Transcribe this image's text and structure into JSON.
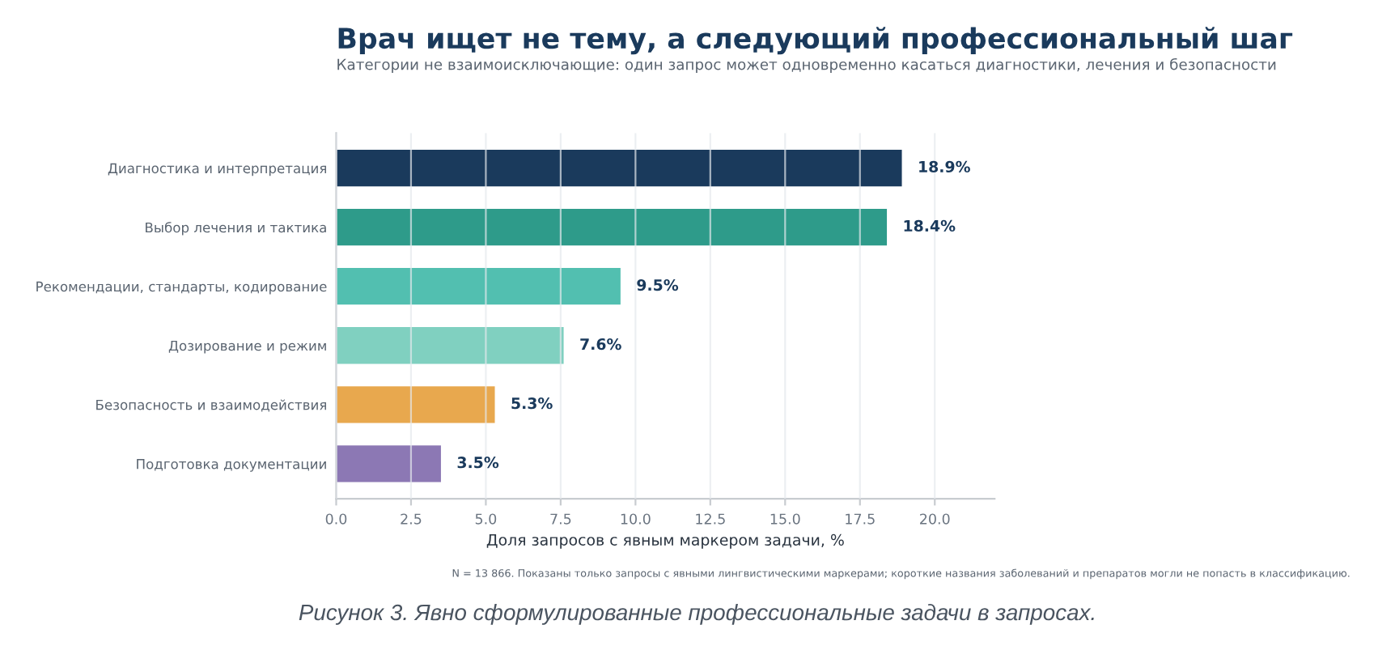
{
  "chart_data": {
    "type": "bar",
    "orientation": "horizontal",
    "title": "Врач ищет не тему, а следующий профессиональный шаг",
    "subtitle": "Категории не взаимоисключающие: один запрос может одновременно касаться диагностики, лечения и безопасности",
    "categories": [
      "Диагностика и интерпретация",
      "Выбор лечения и тактика",
      "Рекомендации, стандарты, кодирование",
      "Дозирование и режим",
      "Безопасность и взаимодействия",
      "Подготовка документации"
    ],
    "values": [
      18.9,
      18.4,
      9.5,
      7.6,
      5.3,
      3.5
    ],
    "colors": [
      "#1a3a5c",
      "#2e9b8a",
      "#52bfb0",
      "#80d0c0",
      "#e8a84e",
      "#8c78b4"
    ],
    "value_labels": [
      "18.9%",
      "18.4%",
      "9.5%",
      "7.6%",
      "5.3%",
      "3.5%"
    ],
    "xlabel": "Доля запросов с явным маркером задачи, %",
    "xlim": [
      0,
      22
    ],
    "xticks": [
      {
        "value": 0,
        "label": "0.0"
      },
      {
        "value": 2.5,
        "label": "2.5"
      },
      {
        "value": 5,
        "label": "5.0"
      },
      {
        "value": 7.5,
        "label": "7.5"
      },
      {
        "value": 10,
        "label": "10.0"
      },
      {
        "value": 12.5,
        "label": "12.5"
      },
      {
        "value": 15,
        "label": "15.0"
      },
      {
        "value": 17.5,
        "label": "17.5"
      },
      {
        "value": 20,
        "label": "20.0"
      }
    ],
    "grid": "x",
    "annotations": [
      "N = 13 866. Показаны только запросы с явными лингвистическими маркерами; короткие названия заболеваний и препаратов могли не попасть в классификацию.",
      "Рисунок 3. Явно сформулированные профессиональные задачи в запросах."
    ]
  }
}
